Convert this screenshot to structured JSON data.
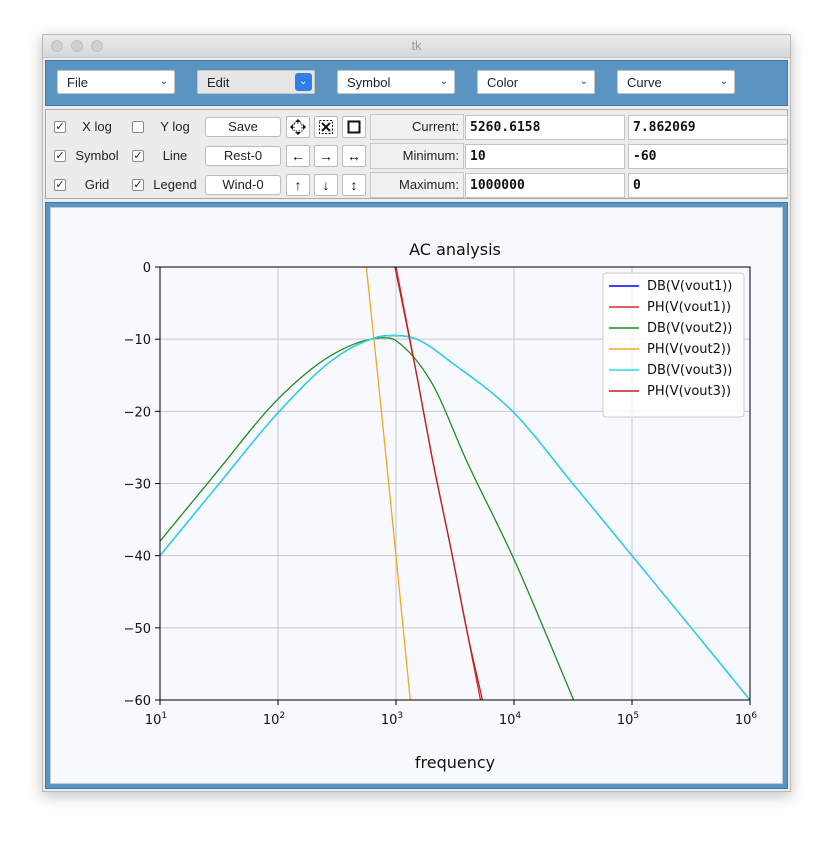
{
  "window": {
    "title": "tk"
  },
  "menus": [
    {
      "label": "File"
    },
    {
      "label": "Edit"
    },
    {
      "label": "Symbol"
    },
    {
      "label": "Color"
    },
    {
      "label": "Curve"
    }
  ],
  "options": {
    "xlog": {
      "label": "X log",
      "checked": true
    },
    "ylog": {
      "label": "Y log",
      "checked": false
    },
    "symbol": {
      "label": "Symbol",
      "checked": true
    },
    "line": {
      "label": "Line",
      "checked": true
    },
    "grid": {
      "label": "Grid",
      "checked": true
    },
    "legend": {
      "label": "Legend",
      "checked": true
    }
  },
  "buttons": {
    "save": "Save",
    "rest": "Rest-0",
    "wind": "Wind-0"
  },
  "tools": {
    "row1": [
      "pan-all-icon",
      "zoom-box-icon",
      "fit-square-icon"
    ],
    "row2": [
      "arrow-left-icon",
      "arrow-right-icon",
      "arrow-horizontal-icon"
    ],
    "row3": [
      "arrow-up-icon",
      "arrow-down-icon",
      "arrow-vertical-icon"
    ]
  },
  "readout": {
    "current_label": "Current:",
    "current_x": "5260.6158",
    "current_y": "7.862069",
    "minimum_label": "Minimum:",
    "minimum_x": "10",
    "minimum_y": "-60",
    "maximum_label": "Maximum:",
    "maximum_x": "1000000",
    "maximum_y": "0"
  },
  "chart_data": {
    "type": "line",
    "title": "AC analysis",
    "xlabel": "frequency",
    "ylabel": "",
    "xscale": "log",
    "xlim": [
      10,
      1000000
    ],
    "ylim": [
      -60,
      0
    ],
    "xticks": [
      "10^1",
      "10^2",
      "10^3",
      "10^4",
      "10^5",
      "10^6"
    ],
    "yticks": [
      "0",
      "−10",
      "−20",
      "−30",
      "−40",
      "−50",
      "−60"
    ],
    "grid": true,
    "legend_position": "top-right",
    "series": [
      {
        "name": "DB(V(vout1))",
        "color": "#0000ff",
        "x": [
          10,
          30,
          100,
          300,
          700,
          1000,
          1500,
          3000,
          10000,
          30000,
          100000,
          300000,
          1000000
        ],
        "y": [
          -40.0,
          -30.5,
          -20.2,
          -12.7,
          -9.7,
          -9.5,
          -10.0,
          -13.3,
          -20.2,
          -29.6,
          -40.0,
          -49.5,
          -60.0
        ]
      },
      {
        "name": "PH(V(vout1))",
        "color": "#d62728",
        "x": [
          1000,
          1500,
          2000,
          3000,
          4000,
          5200
        ],
        "y": [
          0.0,
          -15.0,
          -26.0,
          -40.0,
          -50.5,
          -60.0
        ]
      },
      {
        "name": "DB(V(vout2))",
        "color": "#228b22",
        "x": [
          10,
          30,
          100,
          300,
          800,
          1000,
          2000,
          4000,
          10000,
          20000,
          32000
        ],
        "y": [
          -38.0,
          -28.5,
          -18.3,
          -12.0,
          -9.8,
          -10.2,
          -16.0,
          -27.0,
          -40.5,
          -52.0,
          -60.0
        ]
      },
      {
        "name": "PH(V(vout2))",
        "color": "#f5a623",
        "x": [
          560,
          700,
          1000,
          1320
        ],
        "y": [
          0.0,
          -15.0,
          -40.0,
          -60.0
        ]
      },
      {
        "name": "DB(V(vout3))",
        "color": "#1fe0e8",
        "x": [
          10,
          30,
          100,
          300,
          700,
          1000,
          1500,
          3000,
          10000,
          30000,
          100000,
          300000,
          1000000
        ],
        "y": [
          -40.0,
          -30.5,
          -20.2,
          -12.7,
          -9.7,
          -9.5,
          -10.0,
          -13.3,
          -20.2,
          -29.6,
          -40.0,
          -49.5,
          -60.0
        ]
      },
      {
        "name": "PH(V(vout3))",
        "color": "#c21f1f",
        "x": [
          980,
          1500,
          2000,
          3000,
          4000,
          5400
        ],
        "y": [
          0.0,
          -15.0,
          -26.0,
          -40.0,
          -50.5,
          -60.0
        ]
      }
    ]
  }
}
